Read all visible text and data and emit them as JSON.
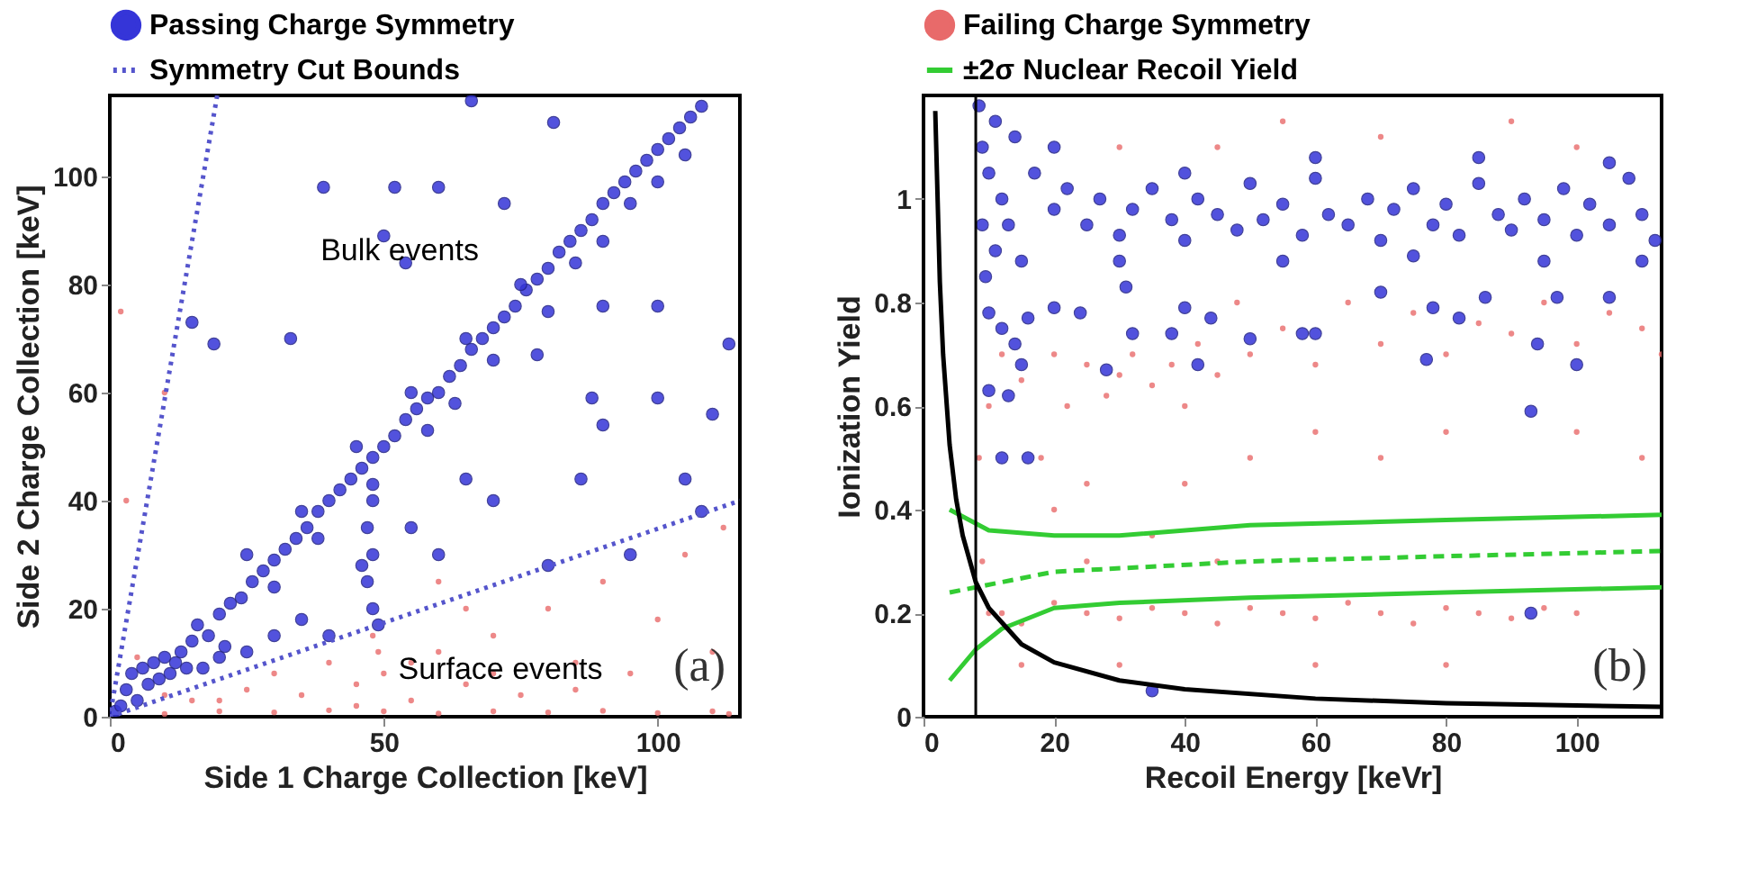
{
  "chart_data": [
    {
      "type": "scatter",
      "xlabel": "Side 1 Charge Collection [keV]",
      "ylabel": "Side 2 Charge Collection [keV]",
      "xlim": [
        0,
        115
      ],
      "ylim": [
        0,
        115
      ],
      "xticks": [
        0,
        50,
        100
      ],
      "yticks": [
        0,
        20,
        40,
        60,
        80,
        100
      ],
      "grid": false,
      "legend": "top",
      "marker": "circle",
      "series": [
        {
          "color": "#e86a6a",
          "x": [
            10,
            20,
            30,
            40,
            50,
            60,
            70,
            80,
            90,
            100,
            110,
            113,
            15,
            25,
            30,
            35,
            40,
            45,
            48,
            49,
            50,
            55,
            60,
            65,
            70,
            75,
            80,
            85,
            90,
            95,
            100,
            105,
            110,
            112,
            60,
            70,
            45,
            55,
            65,
            85,
            20,
            10,
            5,
            3,
            10,
            2
          ],
          "values": [
            0.5,
            1,
            0.8,
            1.2,
            1,
            0.6,
            1,
            0.8,
            1.1,
            0.7,
            1,
            0.5,
            3,
            5,
            8,
            4,
            10,
            6,
            15,
            12,
            8,
            3,
            12,
            6,
            15,
            4,
            20,
            10,
            25,
            8,
            18,
            30,
            12,
            35,
            25,
            8,
            2,
            10,
            20,
            5,
            3,
            4,
            11,
            40,
            60,
            75
          ]
        },
        {
          "name": "Passing Charge Symmetry",
          "color": "#3535d8",
          "x": [
            1,
            2,
            3,
            4,
            5,
            6,
            7,
            8,
            9,
            10,
            11,
            12,
            13,
            14,
            15,
            17,
            16,
            18,
            20,
            22,
            21,
            24,
            26,
            28,
            30,
            32,
            34,
            36,
            38,
            40,
            42,
            44,
            46,
            48,
            50,
            52,
            54,
            56,
            58,
            60,
            62,
            64,
            66,
            68,
            70,
            72,
            74,
            76,
            78,
            80,
            82,
            84,
            86,
            88,
            90,
            92,
            94,
            96,
            98,
            100,
            102,
            104,
            106,
            108,
            25,
            30,
            35,
            38,
            45,
            48,
            55,
            58,
            63,
            65,
            70,
            75,
            80,
            85,
            90,
            95,
            100,
            105,
            48,
            47,
            48,
            47,
            48,
            49,
            46,
            30,
            35,
            40,
            25,
            20,
            15,
            19,
            33,
            39,
            52,
            60,
            66,
            50,
            54,
            72,
            81,
            90,
            100,
            113,
            110,
            100,
            90,
            95,
            80,
            70,
            60,
            65,
            86,
            105,
            108,
            78,
            88,
            55
          ],
          "values": [
            1,
            2,
            5,
            8,
            3,
            9,
            6,
            10,
            7,
            11,
            8,
            10,
            12,
            9,
            14,
            9,
            17,
            15,
            19,
            21,
            13,
            22,
            25,
            27,
            29,
            31,
            33,
            35,
            38,
            40,
            42,
            44,
            46,
            48,
            50,
            52,
            55,
            57,
            59,
            60,
            63,
            65,
            68,
            70,
            72,
            74,
            76,
            79,
            81,
            83,
            86,
            88,
            90,
            92,
            95,
            97,
            99,
            101,
            103,
            105,
            107,
            109,
            111,
            113,
            30,
            24,
            38,
            33,
            50,
            43,
            60,
            53,
            58,
            70,
            66,
            80,
            75,
            84,
            88,
            95,
            99,
            104,
            40,
            35,
            30,
            25,
            20,
            17,
            28,
            15,
            18,
            15,
            12,
            11,
            73,
            69,
            70,
            98,
            98,
            98,
            114,
            89,
            84,
            95,
            110,
            76,
            76,
            69,
            56,
            59,
            54,
            30,
            28,
            40,
            30,
            44,
            44,
            44,
            38,
            67,
            59,
            35
          ]
        },
        {
          "name": "Symmetry Cut Bounds",
          "type": "line",
          "marker": "none",
          "line_style": "dotted",
          "color": "#5555cc",
          "x": [
            19.6,
            0,
            115
          ],
          "values": [
            115,
            0,
            40
          ]
        }
      ],
      "annotations": [
        "Bulk events",
        "Surface events",
        "(a)"
      ]
    },
    {
      "type": "scatter",
      "xlabel": "Recoil Energy [keVr]",
      "ylabel": "Ionization Yield",
      "xlim": [
        0,
        113
      ],
      "ylim": [
        0,
        1.2
      ],
      "xticks": [
        0,
        20,
        40,
        60,
        80,
        100
      ],
      "yticks": [
        0,
        0.2,
        0.4,
        0.6,
        0.8,
        1
      ],
      "grid": false,
      "legend": "top",
      "marker": "circle",
      "series": [
        {
          "name": "Failing Charge Symmetry",
          "color": "#e86a6a",
          "x": [
            8.5,
            9,
            10,
            10,
            12,
            15,
            18,
            20,
            22,
            25,
            28,
            30,
            32,
            35,
            38,
            40,
            42,
            45,
            48,
            50,
            55,
            60,
            65,
            70,
            75,
            80,
            85,
            90,
            95,
            100,
            105,
            110,
            113,
            12,
            15,
            20,
            25,
            30,
            35,
            40,
            45,
            50,
            55,
            60,
            65,
            70,
            75,
            80,
            85,
            90,
            95,
            100,
            15,
            25,
            30,
            40,
            50,
            60,
            70,
            80,
            30,
            45,
            55,
            70,
            90,
            100,
            25,
            35,
            20,
            60,
            80,
            110,
            100,
            45
          ],
          "values": [
            0.5,
            0.3,
            0.2,
            0.6,
            0.7,
            0.65,
            0.5,
            0.7,
            0.6,
            0.68,
            0.62,
            0.66,
            0.7,
            0.64,
            0.68,
            0.6,
            0.72,
            0.66,
            0.8,
            0.7,
            0.75,
            0.68,
            0.8,
            0.72,
            0.78,
            0.7,
            0.76,
            0.74,
            0.8,
            0.72,
            0.78,
            0.75,
            0.7,
            0.2,
            0.18,
            0.22,
            0.2,
            0.19,
            0.21,
            0.2,
            0.18,
            0.21,
            0.2,
            0.19,
            0.22,
            0.2,
            0.18,
            0.21,
            0.2,
            0.19,
            0.21,
            0.2,
            0.1,
            0.3,
            0.1,
            0.45,
            0.5,
            0.55,
            0.5,
            0.55,
            1.1,
            1.1,
            1.15,
            1.12,
            1.15,
            1.1,
            0.45,
            0.35,
            0.4,
            0.1,
            0.1,
            0.5,
            0.55,
            0.3
          ]
        },
        {
          "color": "#3535d8",
          "x": [
            8.5,
            9,
            9,
            9.5,
            10,
            10,
            11,
            11,
            12,
            12,
            13,
            13,
            14,
            14,
            15,
            15,
            16,
            12,
            10,
            17,
            20,
            22,
            25,
            27,
            30,
            32,
            35,
            38,
            40,
            42,
            45,
            48,
            50,
            52,
            55,
            58,
            60,
            62,
            65,
            68,
            70,
            72,
            75,
            78,
            80,
            82,
            85,
            88,
            90,
            92,
            95,
            98,
            100,
            102,
            105,
            108,
            110,
            112,
            20,
            40,
            60,
            85,
            105,
            30,
            55,
            75,
            95,
            110,
            16,
            20,
            24,
            28,
            31,
            32,
            38,
            40,
            42,
            44,
            50,
            58,
            60,
            70,
            77,
            78,
            82,
            86,
            93,
            94,
            97,
            100,
            105,
            93,
            35
          ],
          "values": [
            1.18,
            1.1,
            0.95,
            0.85,
            1.05,
            0.78,
            0.9,
            1.15,
            0.75,
            1,
            0.62,
            0.95,
            0.72,
            1.12,
            0.68,
            0.88,
            0.5,
            0.5,
            0.63,
            1.05,
            0.98,
            1.02,
            0.95,
            1,
            0.93,
            0.98,
            1.02,
            0.96,
            0.92,
            1,
            0.97,
            0.94,
            1.03,
            0.96,
            0.99,
            0.93,
            1.04,
            0.97,
            0.95,
            1,
            0.92,
            0.98,
            1.02,
            0.95,
            0.99,
            0.93,
            1.03,
            0.97,
            0.94,
            1,
            0.96,
            1.02,
            0.93,
            0.99,
            0.95,
            1.04,
            0.97,
            0.92,
            1.1,
            1.05,
            1.08,
            1.08,
            1.07,
            0.88,
            0.88,
            0.89,
            0.88,
            0.88,
            0.77,
            0.79,
            0.78,
            0.67,
            0.83,
            0.74,
            0.74,
            0.79,
            0.68,
            0.77,
            0.73,
            0.74,
            0.74,
            0.82,
            0.69,
            0.79,
            0.77,
            0.81,
            0.59,
            0.72,
            0.81,
            0.68,
            0.81,
            0.2,
            0.05
          ]
        },
        {
          "name": "±2σ Nuclear Recoil Yield",
          "type": "line",
          "marker": "none",
          "color": "#33cc33",
          "x": [
            4,
            10,
            20,
            30,
            50,
            80,
            113
          ],
          "values": [
            0.4,
            0.36,
            0.35,
            0.35,
            0.37,
            0.38,
            0.39
          ]
        },
        {
          "type": "line",
          "marker": "none",
          "line_style": "dashed",
          "color": "#33cc33",
          "x": [
            4,
            20,
            50,
            80,
            113
          ],
          "values": [
            0.24,
            0.28,
            0.3,
            0.31,
            0.32
          ]
        },
        {
          "type": "line",
          "marker": "none",
          "color": "#33cc33",
          "x": [
            4,
            8,
            12,
            20,
            30,
            50,
            80,
            113
          ],
          "values": [
            0.07,
            0.13,
            0.17,
            0.21,
            0.22,
            0.23,
            0.24,
            0.25
          ]
        },
        {
          "type": "line",
          "marker": "none",
          "color": "#000000",
          "x": [
            1.8,
            2.5,
            3,
            4,
            5,
            6,
            8,
            10,
            15,
            20,
            30,
            40,
            60,
            80,
            113
          ],
          "values": [
            1.17,
            0.84,
            0.7,
            0.525,
            0.42,
            0.35,
            0.26,
            0.21,
            0.14,
            0.105,
            0.07,
            0.053,
            0.035,
            0.026,
            0.019
          ]
        }
      ],
      "ref_lines": [
        {
          "axis": "x",
          "value": 8,
          "color": "#000000"
        }
      ],
      "annotations": [
        "(b)"
      ]
    }
  ]
}
